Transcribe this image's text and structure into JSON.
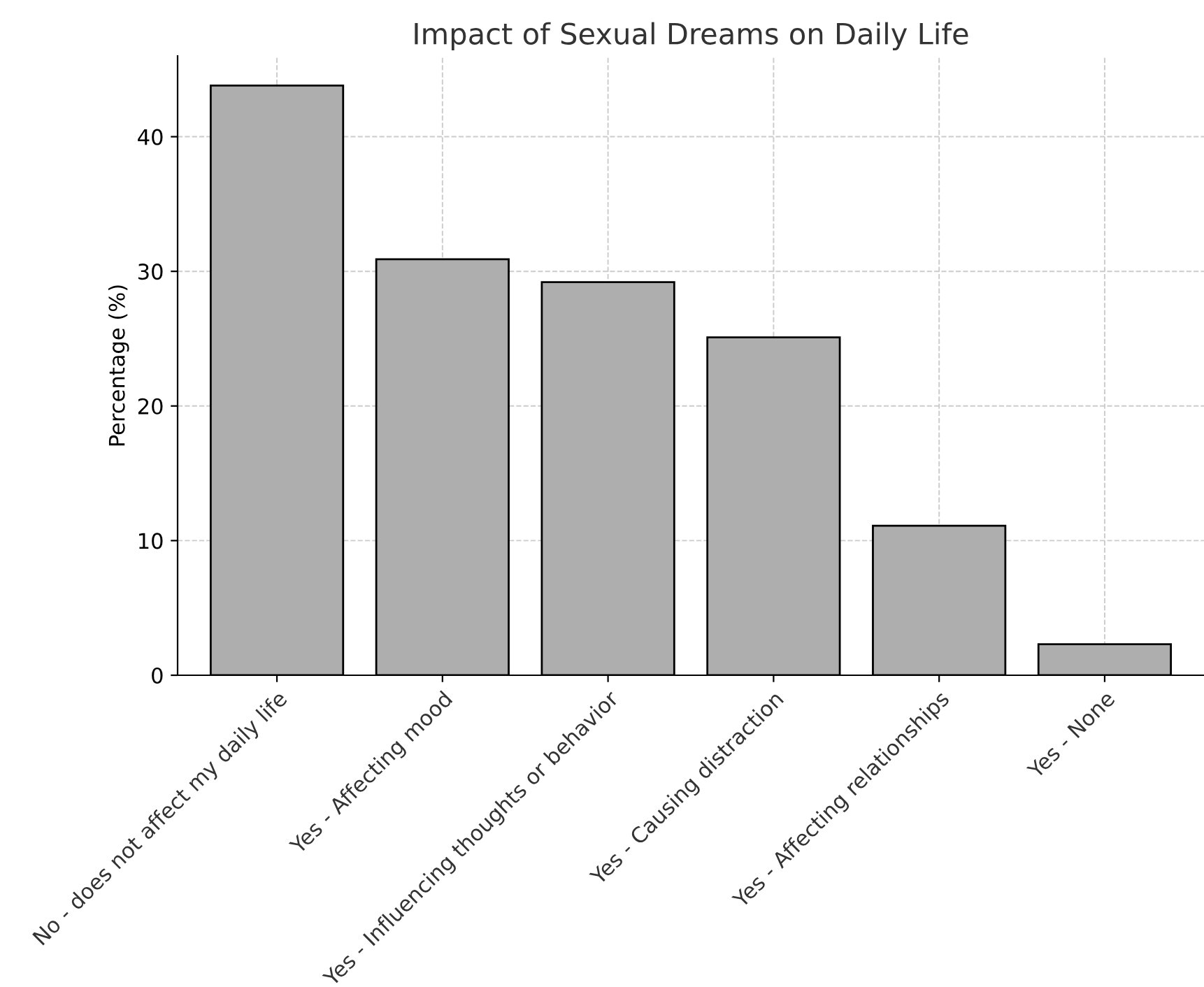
{
  "chart_data": {
    "type": "bar",
    "title": "Impact of Sexual Dreams on Daily Life",
    "ylabel": "Percentage (%)",
    "categories": [
      "No - does not affect my daily life",
      "Yes - Affecting mood",
      "Yes - Influencing thoughts or behavior",
      "Yes - Causing distraction",
      "Yes - Affecting relationships",
      "Yes - None"
    ],
    "values": [
      43.8,
      30.9,
      29.2,
      25.1,
      11.1,
      2.3
    ],
    "color": "#aeaeae",
    "ylim": [
      0,
      46
    ],
    "yticks": [
      0,
      10,
      20,
      30,
      40
    ],
    "grid": true
  }
}
